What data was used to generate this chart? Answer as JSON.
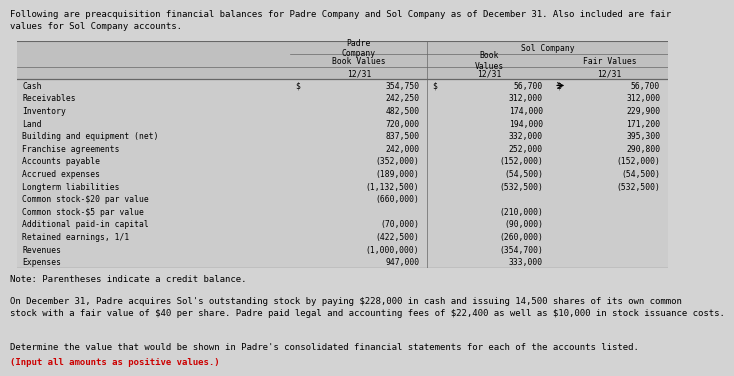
{
  "header_text": "Following are preacquisition financial balances for Padre Company and Sol Company as of December 31. Also included are fair\nvalues for Sol Company accounts.",
  "note_text": "Note: Parentheses indicate a credit balance.",
  "paragraph1": "On December 31, Padre acquires Sol's outstanding stock by paying $228,000 in cash and issuing 14,500 shares of its own common\nstock with a fair value of $40 per share. Padre paid legal and accounting fees of $22,400 as well as $10,000 in stock issuance costs.",
  "paragraph2_normal": "Determine the value that would be shown in Padre's consolidated financial statements for each of the accounts listed. ",
  "paragraph2_bold": "(Input all amounts as positive values.)",
  "col_headers_row1": [
    "",
    "Padre\nCompany",
    "Sol Company",
    ""
  ],
  "col_headers_row2": [
    "",
    "Book Values",
    "Book\nValues",
    "Fair Values"
  ],
  "col_headers_row3": [
    "",
    "12/31",
    "12/31",
    "12/31"
  ],
  "row_labels": [
    "Cash",
    "Receivables",
    "Inventory",
    "Land",
    "Building and equipment (net)",
    "Franchise agreements",
    "Accounts payable",
    "Accrued expenses",
    "Longterm liabilities",
    "Common stock-$20 par value",
    "Common stock-$5 par value",
    "Additional paid-in capital",
    "Retained earnings, 1/1",
    "Revenues",
    "Expenses"
  ],
  "padre_values": [
    "354,750",
    "242,250",
    "482,500",
    "720,000",
    "837,500",
    "242,000",
    "(352,000)",
    "(189,000)",
    "(1,132,500)",
    "(660,000)",
    "",
    "(70,000)",
    "(422,500)",
    "(1,000,000)",
    "947,000"
  ],
  "sol_book_values": [
    "56,700",
    "312,000",
    "174,000",
    "194,000",
    "332,000",
    "252,000",
    "(152,000)",
    "(54,500)",
    "(532,500)",
    "",
    "(210,000)",
    "(90,000)",
    "(260,000)",
    "(354,700)",
    "333,000"
  ],
  "sol_fair_values": [
    "56,700",
    "312,000",
    "229,900",
    "171,200",
    "395,300",
    "290,800",
    "(152,000)",
    "(54,500)",
    "(532,500)",
    "",
    "",
    "",
    "",
    "",
    ""
  ],
  "bg_color": "#d3d3d3",
  "header_color": "#c0c0c0",
  "row_color": "#cccccc",
  "line_color": "#666666",
  "font_size_text": 6.5,
  "font_size_table": 5.8
}
